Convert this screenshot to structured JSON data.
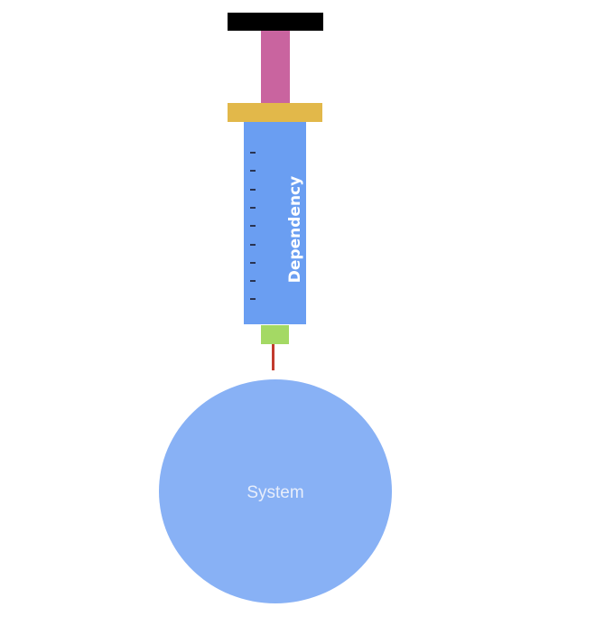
{
  "syringe": {
    "label": "Dependency",
    "tick_count": 9,
    "colors": {
      "thumb_rest": "#000000",
      "plunger_rod": "#c9649f",
      "flange": "#e2b84a",
      "barrel": "#6a9ef2",
      "label_text": "#ffffff",
      "tick": "#1a1a2a",
      "hub": "#a4d964",
      "needle": "#c23b2e"
    }
  },
  "target": {
    "label": "System",
    "colors": {
      "fill": "#88b1f5",
      "label_text": "#e8eefb"
    }
  }
}
